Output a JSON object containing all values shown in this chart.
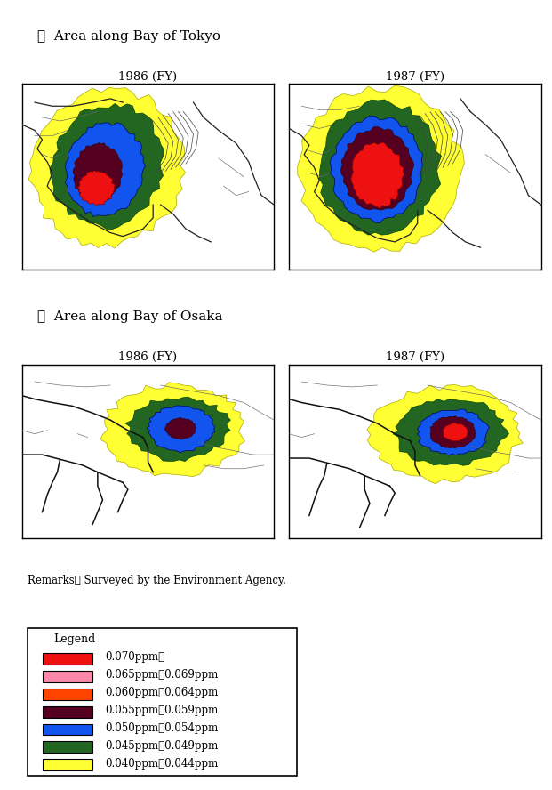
{
  "title_section1": "①  Area along Bay of Tokyo",
  "title_section2": "②  Area along Bay of Osaka",
  "panel_titles": [
    "1986 (FY)",
    "1987 (FY)"
  ],
  "remarks": "Remarks： Surveyed by the Environment Agency.",
  "legend_title": "Legend",
  "legend_entries": [
    {
      "color": "#EE1111",
      "label": "0.070ppm～"
    },
    {
      "color": "#FF88AA",
      "label": "0.065ppm～0.069ppm"
    },
    {
      "color": "#FF4400",
      "label": "0.060ppm～0.064ppm"
    },
    {
      "color": "#550020",
      "label": "0.055ppm～0.059ppm"
    },
    {
      "color": "#1155EE",
      "label": "0.050ppm～0.054ppm"
    },
    {
      "color": "#226622",
      "label": "0.045ppm～0.049ppm"
    },
    {
      "color": "#FFFF33",
      "label": "0.040ppm～0.044ppm"
    }
  ],
  "bg_color": "#FFFFFF",
  "map_bg": "#FFFFFF",
  "contour_color": "#333333"
}
